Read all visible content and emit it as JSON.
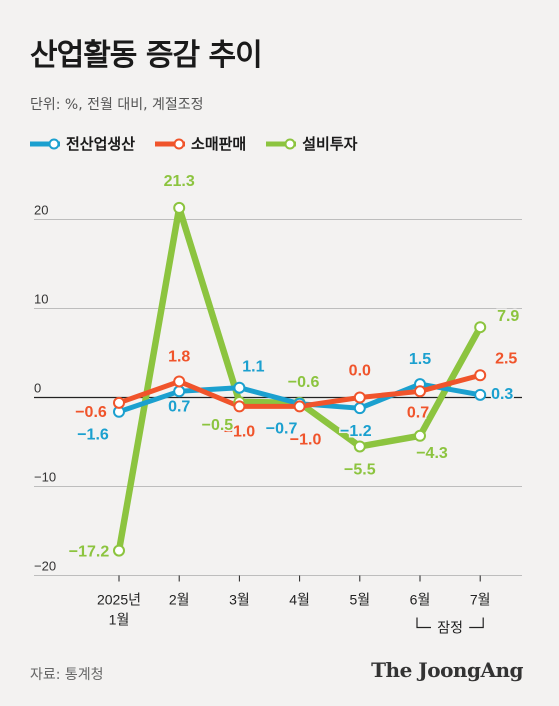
{
  "title": "산업활동 증감 추이",
  "unit_note": "단위: %, 전월 대비, 계절조정",
  "source": "자료: 통계청",
  "brand": "The JoongAng",
  "provisional_label": "잠정",
  "chart_data": {
    "type": "line",
    "categories": [
      "2025년 1월",
      "2월",
      "3월",
      "4월",
      "5월",
      "6월",
      "7월"
    ],
    "y_ticks": [
      "20",
      "10",
      "0",
      "−10",
      "−20"
    ],
    "ylim": [
      -20,
      25
    ],
    "legend_position": "top-left",
    "series": [
      {
        "name": "전산업생산",
        "color": "#1ba0cf",
        "values": [
          -1.6,
          0.7,
          1.1,
          -0.7,
          -1.2,
          1.5,
          0.3
        ],
        "labels": [
          "−1.6",
          "0.7",
          "1.1",
          "−0.7",
          "−1.2",
          "1.5",
          "0.3"
        ]
      },
      {
        "name": "소매판매",
        "color": "#f0542b",
        "values": [
          -0.6,
          1.8,
          -1.0,
          -1.0,
          0.0,
          0.7,
          2.5
        ],
        "labels": [
          "−0.6",
          "1.8",
          "−1.0",
          "−1.0",
          "0.0",
          "0.7",
          "2.5"
        ]
      },
      {
        "name": "설비투자",
        "color": "#8cc43f",
        "values": [
          -17.2,
          21.3,
          -0.5,
          -0.6,
          -5.5,
          -4.3,
          7.9
        ],
        "labels": [
          "−17.2",
          "21.3",
          "−0.5",
          "−0.6",
          "−5.5",
          "−4.3",
          "7.9"
        ]
      }
    ]
  }
}
